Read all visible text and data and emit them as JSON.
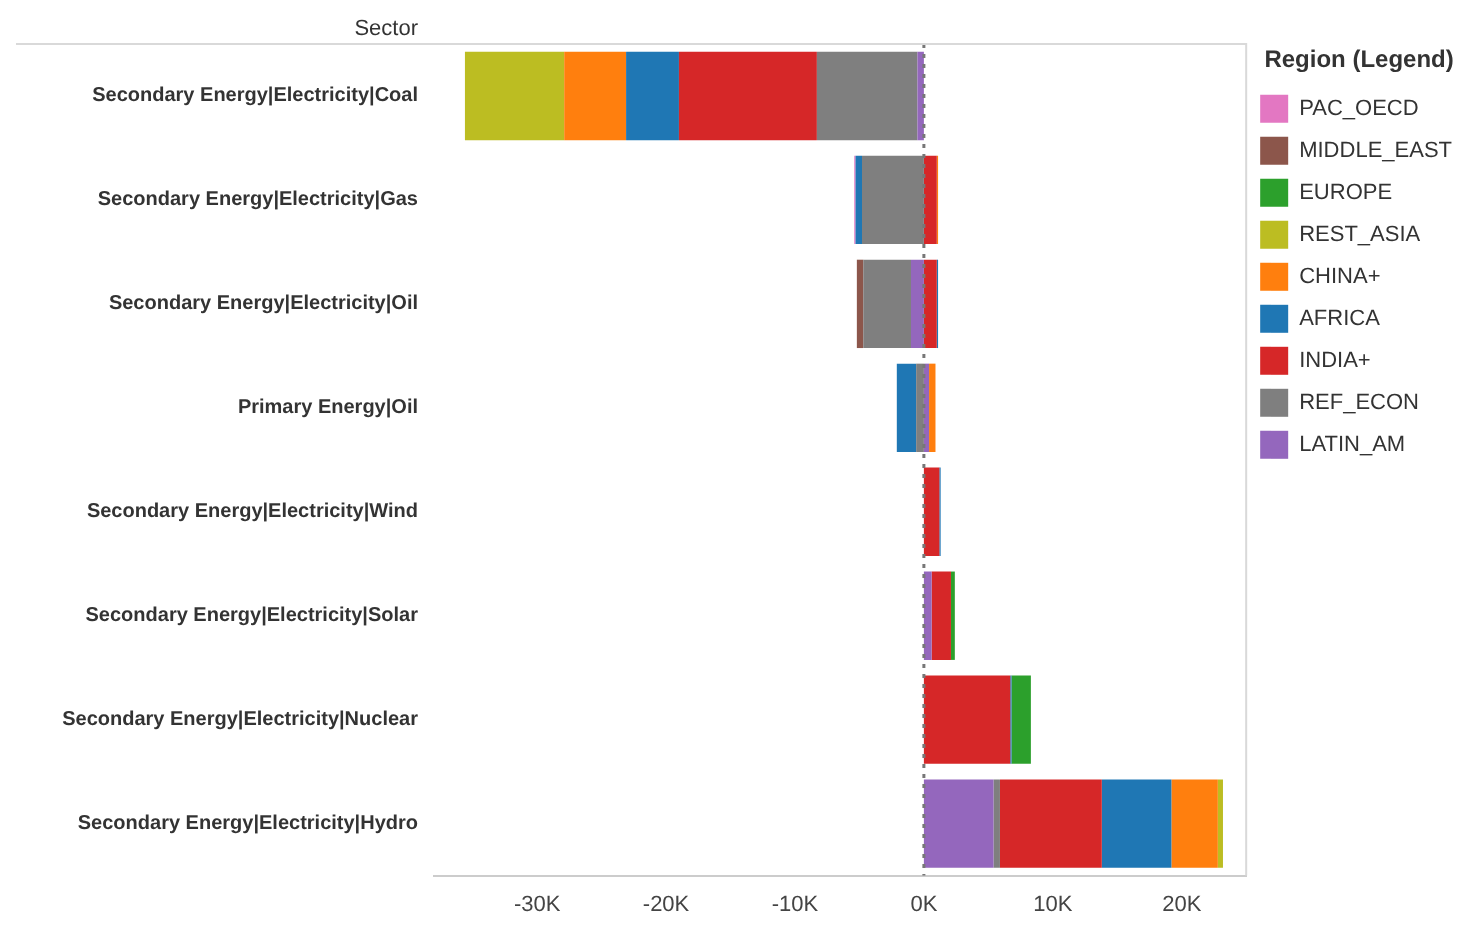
{
  "chart_data": {
    "type": "bar",
    "orientation": "horizontal",
    "stacked": true,
    "ylabel": "Sector",
    "legend_title": "Region (Legend)",
    "legend": "top right",
    "grid": false,
    "categories": [
      "Secondary Energy|Electricity|Coal",
      "Secondary Energy|Electricity|Gas",
      "Secondary Energy|Electricity|Oil",
      "Primary Energy|Oil",
      "Secondary Energy|Electricity|Wind",
      "Secondary Energy|Electricity|Solar",
      "Secondary Energy|Electricity|Nuclear",
      "Secondary Energy|Electricity|Hydro"
    ],
    "xlim": [
      -38000,
      25000
    ],
    "xticks": [
      {
        "value": -30000,
        "label": "-30K"
      },
      {
        "value": -20000,
        "label": "-20K"
      },
      {
        "value": -10000,
        "label": "-10K"
      },
      {
        "value": 0,
        "label": "0K"
      },
      {
        "value": 10000,
        "label": "10K"
      },
      {
        "value": 20000,
        "label": "20K"
      }
    ],
    "ref_lines": [
      {
        "axis": "x",
        "value": 0,
        "color": "#777777",
        "line_style": "dotted"
      }
    ],
    "series": [
      {
        "name": "LATIN_AM",
        "color": "#9467bd",
        "values": [
          -500,
          null,
          -1000,
          400,
          null,
          600,
          null,
          5400
        ]
      },
      {
        "name": "REF_ECON",
        "color": "#7f7f7f",
        "values": [
          -7800,
          -4800,
          -3700,
          -600,
          null,
          null,
          null,
          500
        ]
      },
      {
        "name": "INDIA+",
        "color": "#d62728",
        "values": [
          -10700,
          1000,
          1000,
          null,
          1200,
          1500,
          6700,
          7900
        ]
      },
      {
        "name": "AFRICA",
        "color": "#1f77b4",
        "values": [
          -4100,
          -500,
          100,
          -1500,
          100,
          null,
          100,
          5400
        ]
      },
      {
        "name": "CHINA+",
        "color": "#ff7f0e",
        "values": [
          -4800,
          100,
          null,
          500,
          null,
          null,
          null,
          3600
        ]
      },
      {
        "name": "REST_ASIA",
        "color": "#bcbd22",
        "values": [
          -7700,
          null,
          null,
          null,
          null,
          null,
          null,
          400
        ]
      },
      {
        "name": "EUROPE",
        "color": "#2ca02c",
        "values": [
          null,
          null,
          null,
          null,
          null,
          300,
          1500,
          null
        ]
      },
      {
        "name": "MIDDLE_EAST",
        "color": "#8c564b",
        "values": [
          null,
          null,
          -500,
          null,
          null,
          null,
          null,
          null
        ]
      },
      {
        "name": "PAC_OECD",
        "color": "#e377c2",
        "values": [
          null,
          -100,
          null,
          null,
          null,
          null,
          null,
          null
        ]
      }
    ]
  }
}
